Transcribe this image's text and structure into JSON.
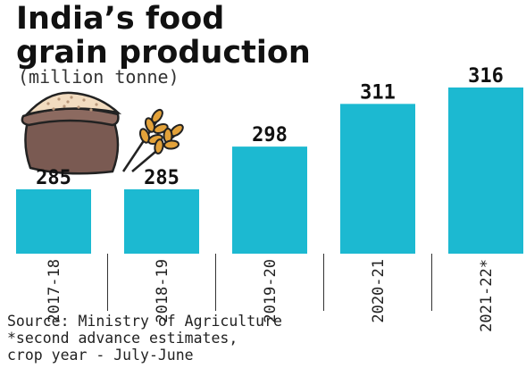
{
  "header": {
    "title": "India’s food\ngrain production",
    "subtitle": "(million tonne)"
  },
  "chart_data": {
    "type": "bar",
    "title": "India’s food grain production",
    "ylabel": "(million tonne)",
    "categories": [
      "2017-18",
      "2018-19",
      "2019-20",
      "2020-21",
      "2021-22*"
    ],
    "values": [
      285,
      285,
      298,
      311,
      316
    ],
    "data_labels": [
      "285",
      "285",
      "298",
      "311",
      "316"
    ],
    "bar_color": "#1cb9d1",
    "orientation": "vertical",
    "tick_label_rotation": "vertical",
    "grid": false
  },
  "footer": {
    "source": "Source: Ministry of Agriculture",
    "note_line1": "*second advance estimates,",
    "note_line2": "crop year - July-June"
  },
  "illustration": {
    "icon_names": [
      "grain-sack-icon",
      "wheat-icon"
    ]
  }
}
